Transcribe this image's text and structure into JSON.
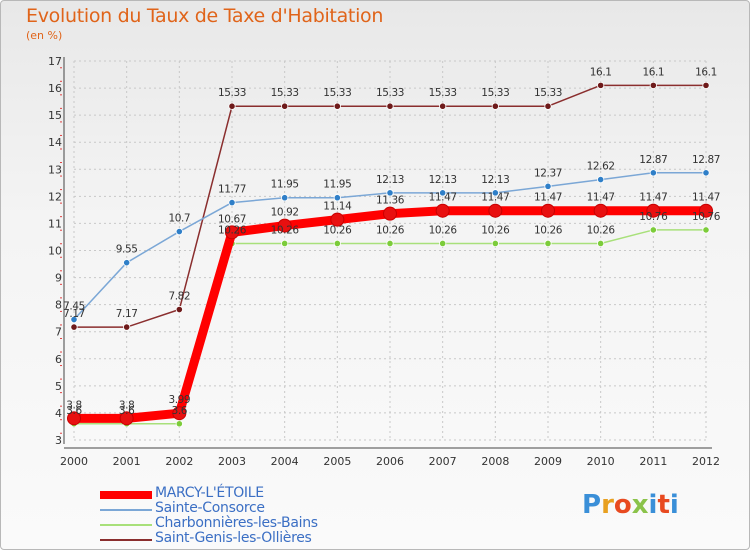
{
  "chart_data": {
    "type": "line",
    "title": "Evolution du Taux de Taxe d'Habitation",
    "subtitle": "(en %)",
    "xlabel": "",
    "ylabel": "",
    "categories": [
      "2000",
      "2001",
      "2002",
      "2003",
      "2004",
      "2005",
      "2006",
      "2007",
      "2008",
      "2009",
      "2010",
      "2011",
      "2012"
    ],
    "ylim": [
      3,
      17
    ],
    "yticks": [
      3,
      4,
      5,
      6,
      7,
      8,
      9,
      10,
      11,
      12,
      13,
      14,
      15,
      16,
      17
    ],
    "grid": true,
    "legend_position": "bottom-left",
    "series": [
      {
        "name": "MARCY-L'ÉTOILE",
        "color": "#ff0000",
        "marker_color": "#e81010",
        "values": [
          3.8,
          3.8,
          3.99,
          10.67,
          10.92,
          11.14,
          11.36,
          11.47,
          11.47,
          11.47,
          11.47,
          11.47,
          11.47
        ],
        "labels": [
          "3.8",
          "3.8",
          "3.99",
          "10.67",
          "10.92",
          "11.14",
          "11.36",
          "11.47",
          "11.47",
          "11.47",
          "11.47",
          "11.47",
          "11.47"
        ]
      },
      {
        "name": "Sainte-Consorce",
        "color": "#7ba7d6",
        "marker_color": "#2f7fc8",
        "values": [
          7.45,
          9.55,
          10.7,
          11.77,
          11.95,
          11.95,
          12.13,
          12.13,
          12.13,
          12.37,
          12.62,
          12.87,
          12.87
        ],
        "labels": [
          "7.45",
          "9.55",
          "10.7",
          "11.77",
          "11.95",
          "11.95",
          "12.13",
          "12.13",
          "12.13",
          "12.37",
          "12.62",
          "12.87",
          "12.87"
        ]
      },
      {
        "name": "Charbonnières-les-Bains",
        "color": "#a8e07a",
        "marker_color": "#7ccc3a",
        "values": [
          3.6,
          3.6,
          3.6,
          10.26,
          10.26,
          10.26,
          10.26,
          10.26,
          10.26,
          10.26,
          10.26,
          10.76,
          10.76
        ],
        "labels": [
          "3.6",
          "3.6",
          "3.6",
          "10.26",
          "10.26",
          "10.26",
          "10.26",
          "10.26",
          "10.26",
          "10.26",
          "10.26",
          "10.76",
          "10.76"
        ]
      },
      {
        "name": "Saint-Genis-les-Ollières",
        "color": "#8a2e2e",
        "marker_color": "#6e1a1a",
        "values": [
          7.17,
          7.17,
          7.82,
          15.33,
          15.33,
          15.33,
          15.33,
          15.33,
          15.33,
          15.33,
          16.1,
          16.1,
          16.1
        ],
        "labels": [
          "7.17",
          "7.17",
          "7.82",
          "15.33",
          "15.33",
          "15.33",
          "15.33",
          "15.33",
          "15.33",
          "15.33",
          "16.1",
          "16.1",
          "16.1"
        ]
      }
    ]
  },
  "logo": {
    "text": "Proxiti",
    "colors": [
      "#3a8fd8",
      "#e8a020",
      "#e84a20",
      "#8bc34a",
      "#3a8fd8",
      "#e84a20",
      "#3a8fd8"
    ]
  }
}
